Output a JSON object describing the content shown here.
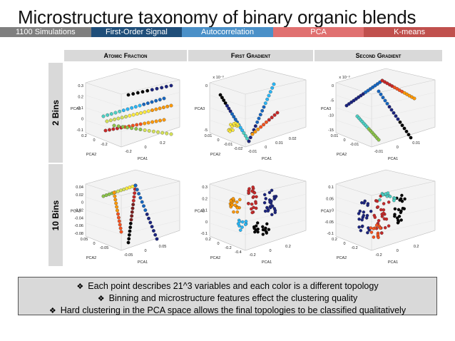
{
  "title": "Microstructure taxonomy of binary organic blends",
  "nav": {
    "items": [
      {
        "label": "1100 Simulations",
        "color": "#7f7f7f"
      },
      {
        "label": "First-Order Signal",
        "color": "#1f4e79"
      },
      {
        "label": "Autocorrelation",
        "color": "#4a90c8"
      },
      {
        "label": "PCA",
        "color": "#e07070"
      },
      {
        "label": "K-means",
        "color": "#c0504d"
      }
    ]
  },
  "figure": {
    "columns": [
      "Atomic Fraction",
      "First Gradient",
      "Second Gradient"
    ],
    "rows": [
      "2 Bins",
      "10 Bins"
    ],
    "axis_labels": {
      "pc1": "PCA1",
      "pc2": "PCA2",
      "pc3": "PCA3"
    },
    "multipliers": {
      "first_gradient_2bins": "x 10⁻³",
      "second_gradient_2bins": "x 10⁻³"
    },
    "ticks": {
      "af2_z": [
        "0.3",
        "0.2",
        "0.1",
        "0",
        "-0.1"
      ],
      "af2_x": [
        "0.2",
        "0",
        "-0.2",
        "-0.2",
        "0",
        "0.2"
      ],
      "fg2_z": [
        "0",
        "-5"
      ],
      "fg2_x": [
        "0.01",
        "0",
        "-0.01",
        "-0.02",
        "-0.01",
        "0",
        "0.01",
        "0.02"
      ],
      "sg2_z": [
        "0",
        "-5",
        "-10",
        "-15"
      ],
      "sg2_x": [
        "0.01",
        "0",
        "-0.01",
        "-0.01",
        "0",
        "0.01"
      ],
      "af10_z": [
        "0.04",
        "0.02",
        "0",
        "-0.02",
        "-0.04",
        "-0.06",
        "-0.08"
      ],
      "af10_x": [
        "0.05",
        "0",
        "-0.05",
        "-0.05",
        "0",
        "0.05"
      ],
      "fg10_z": [
        "0.3",
        "0.2",
        "0.1",
        "0",
        "-0.1"
      ],
      "fg10_x": [
        "0.2",
        "0",
        "-0.2",
        "-0.4",
        "-0.2",
        "0",
        "0.2"
      ],
      "sg10_z": [
        "0.1",
        "0.05",
        "0",
        "-0.05",
        "-0.1"
      ],
      "sg10_x": [
        "0.2",
        "0",
        "-0.2",
        "-0.2",
        "0",
        "0.2"
      ]
    },
    "cluster_colors": [
      "#1a237e",
      "#1565c0",
      "#29b6f6",
      "#4dd0c4",
      "#8bc34a",
      "#d4e157",
      "#ffeb3b",
      "#ff9800",
      "#f4511e",
      "#c62828",
      "#7b1e1e",
      "#000000"
    ]
  },
  "notes": [
    "Each point describes 21^3 variables and each color is a different topology",
    "Binning and microstructure features effect the clustering quality",
    "Hard clustering in the PCA space allows the final topologies to be classified qualitatively"
  ],
  "bullet_icon": "diamond-bullet-icon"
}
